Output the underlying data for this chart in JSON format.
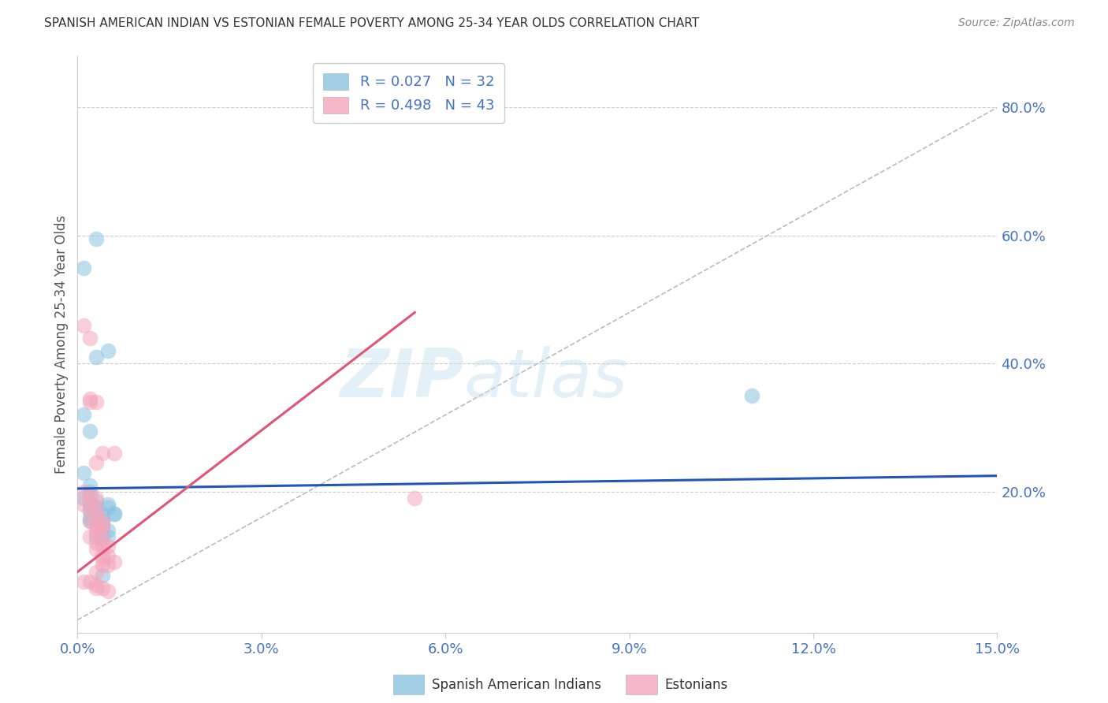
{
  "title": "SPANISH AMERICAN INDIAN VS ESTONIAN FEMALE POVERTY AMONG 25-34 YEAR OLDS CORRELATION CHART",
  "source": "Source: ZipAtlas.com",
  "xlabel": "",
  "ylabel": "Female Poverty Among 25-34 Year Olds",
  "xlim": [
    0.0,
    0.15
  ],
  "ylim": [
    -0.02,
    0.88
  ],
  "yticks": [
    0.2,
    0.4,
    0.6,
    0.8
  ],
  "ytick_labels": [
    "20.0%",
    "40.0%",
    "60.0%",
    "80.0%"
  ],
  "xticks": [
    0.0,
    0.03,
    0.06,
    0.09,
    0.12,
    0.15
  ],
  "xtick_labels": [
    "0.0%",
    "3.0%",
    "6.0%",
    "9.0%",
    "12.0%",
    "15.0%"
  ],
  "blue_color": "#89c4e1",
  "pink_color": "#f4a6bc",
  "blue_line_color": "#2255bb",
  "pink_line_color": "#e05575",
  "diag_line_color": "#bbbbbb",
  "grid_color": "#cccccc",
  "tick_color": "#4472c4",
  "ylabel_color": "#555555",
  "R_blue": 0.027,
  "N_blue": 32,
  "R_pink": 0.498,
  "N_pink": 43,
  "legend_blue_label": "Spanish American Indians",
  "legend_pink_label": "Estonians",
  "watermark_zip": "ZIP",
  "watermark_atlas": "atlas",
  "blue_scatter_x": [
    0.001,
    0.003,
    0.005,
    0.003,
    0.001,
    0.002,
    0.001,
    0.002,
    0.002,
    0.001,
    0.003,
    0.002,
    0.003,
    0.002,
    0.003,
    0.003,
    0.004,
    0.002,
    0.004,
    0.005,
    0.003,
    0.002,
    0.004,
    0.004,
    0.005,
    0.004,
    0.006,
    0.005,
    0.006,
    0.11,
    0.004,
    0.005
  ],
  "blue_scatter_y": [
    0.55,
    0.595,
    0.42,
    0.41,
    0.32,
    0.295,
    0.23,
    0.21,
    0.2,
    0.19,
    0.185,
    0.18,
    0.175,
    0.17,
    0.165,
    0.175,
    0.155,
    0.155,
    0.145,
    0.14,
    0.13,
    0.16,
    0.165,
    0.13,
    0.175,
    0.155,
    0.165,
    0.18,
    0.165,
    0.35,
    0.07,
    0.13
  ],
  "pink_scatter_x": [
    0.001,
    0.002,
    0.002,
    0.003,
    0.002,
    0.004,
    0.003,
    0.001,
    0.002,
    0.003,
    0.002,
    0.001,
    0.003,
    0.002,
    0.003,
    0.004,
    0.002,
    0.003,
    0.004,
    0.003,
    0.004,
    0.003,
    0.002,
    0.004,
    0.003,
    0.004,
    0.005,
    0.003,
    0.004,
    0.005,
    0.004,
    0.006,
    0.004,
    0.005,
    0.003,
    0.001,
    0.002,
    0.003,
    0.003,
    0.004,
    0.005,
    0.006,
    0.055
  ],
  "pink_scatter_y": [
    0.46,
    0.44,
    0.345,
    0.34,
    0.34,
    0.26,
    0.245,
    0.2,
    0.195,
    0.19,
    0.185,
    0.18,
    0.175,
    0.17,
    0.165,
    0.155,
    0.155,
    0.15,
    0.15,
    0.145,
    0.14,
    0.135,
    0.13,
    0.125,
    0.12,
    0.115,
    0.115,
    0.11,
    0.1,
    0.1,
    0.095,
    0.09,
    0.085,
    0.085,
    0.075,
    0.06,
    0.06,
    0.055,
    0.05,
    0.05,
    0.045,
    0.26,
    0.19
  ],
  "blue_line_x": [
    0.0,
    0.15
  ],
  "blue_line_y": [
    0.205,
    0.225
  ],
  "pink_line_x": [
    0.0,
    0.055
  ],
  "pink_line_y": [
    0.075,
    0.48
  ],
  "diag_line_x": [
    0.0,
    0.15
  ],
  "diag_line_y": [
    0.0,
    0.8
  ]
}
